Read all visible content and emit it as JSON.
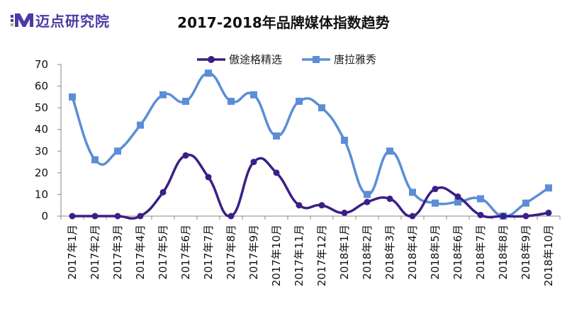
{
  "logo": {
    "text": "迈点研究院"
  },
  "chart_data": {
    "type": "line",
    "title": "2017-2018年品牌媒体指数趋势",
    "xlabel": "",
    "ylabel": "",
    "ylim": [
      0,
      70
    ],
    "yticks": [
      0,
      10,
      20,
      30,
      40,
      50,
      60,
      70
    ],
    "grid": false,
    "legend_position": "top-center",
    "categories": [
      "2017年1月",
      "2017年2月",
      "2017年3月",
      "2017年4月",
      "2017年5月",
      "2017年6月",
      "2017年7月",
      "2017年8月",
      "2017年9月",
      "2017年10月",
      "2017年11月",
      "2017年12月",
      "2018年1月",
      "2018年2月",
      "2018年3月",
      "2018年4月",
      "2018年5月",
      "2018年6月",
      "2018年7月",
      "2018年8月",
      "2018年9月",
      "2018年10月"
    ],
    "series": [
      {
        "name": "傲途格精选",
        "color": "#3b1f85",
        "marker": "circle",
        "values": [
          0,
          0,
          0,
          0,
          11,
          28,
          18,
          0,
          25,
          20,
          5,
          5,
          1.5,
          6.5,
          8,
          0,
          12.5,
          9,
          0.5,
          0,
          0,
          1.5
        ]
      },
      {
        "name": "唐拉雅秀",
        "color": "#5b8ed6",
        "marker": "square",
        "values": [
          55,
          26,
          30,
          42,
          56,
          53,
          66,
          53,
          56,
          37,
          53,
          50,
          35,
          10,
          30,
          11,
          6,
          6.5,
          8,
          0,
          6,
          13
        ]
      }
    ]
  }
}
